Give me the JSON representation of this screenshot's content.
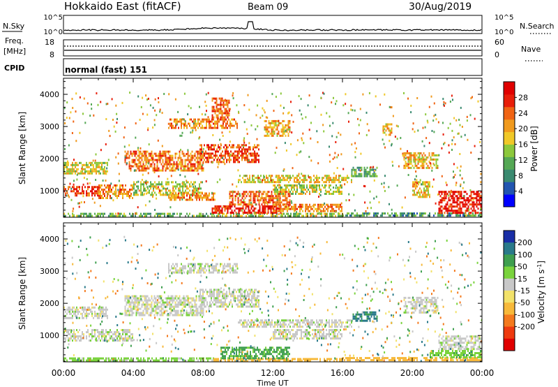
{
  "header": {
    "station": "Hokkaido East (fitACF)",
    "beam": "Beam 09",
    "date": "30/Aug/2019"
  },
  "strips": {
    "nsky_label": "N.Sky",
    "nsky_top": "10^5",
    "nsky_bottom": "10^0",
    "nsearch_label": "N.Search",
    "nsearch_top": "10^5",
    "nsearch_bottom": "10^0",
    "freq_label": "Freq.",
    "freq_unit": "[MHz]",
    "freq_top": "18",
    "freq_bottom": "8",
    "nave_label": "Nave",
    "nave_top": "60",
    "nave_bottom": "0",
    "cpid_label": "CPID",
    "cpid_value": "normal (fast) 151"
  },
  "colors": {
    "power_scale": [
      "#0000ff",
      "#2255b0",
      "#3a8a70",
      "#55a855",
      "#8cc83c",
      "#f0c828",
      "#f09a1e",
      "#f06414",
      "#e81e0a",
      "#e00000"
    ],
    "velocity_scale": [
      "#1a2ea6",
      "#2a7a8a",
      "#3f9f4f",
      "#7ad33d",
      "#c8c8c8",
      "#f2e26a",
      "#f7b93a",
      "#f47a1e",
      "#ee3a0f",
      "#e00000"
    ],
    "ground_scatter": "#bebebe"
  },
  "chart_data": [
    {
      "type": "heatmap",
      "title": "",
      "xlabel": "Time UT",
      "ylabel": "Slant Range [km]",
      "x_ticks": [
        "00:00",
        "04:00",
        "08:00",
        "12:00",
        "16:00",
        "20:00",
        "00:00"
      ],
      "xlim": [
        "00:00",
        "24:00"
      ],
      "y_ticks": [
        1000,
        2000,
        3000,
        4000
      ],
      "ylim": [
        180,
        4500
      ],
      "colorbar": {
        "label": "Power [dB]",
        "ticks": [
          4,
          8,
          12,
          16,
          20,
          24,
          28
        ],
        "range": [
          0,
          32
        ]
      },
      "regions": [
        {
          "t": [
            0.0,
            8.6
          ],
          "r": [
            230,
            320
          ],
          "v": 12
        },
        {
          "t": [
            8.6,
            16.0
          ],
          "r": [
            230,
            320
          ],
          "v": 14
        },
        {
          "t": [
            16.0,
            24.0
          ],
          "r": [
            230,
            330
          ],
          "v": 10
        },
        {
          "t": [
            0.0,
            2.0
          ],
          "r": [
            850,
            1150
          ],
          "v": 26
        },
        {
          "t": [
            2.0,
            4.0
          ],
          "r": [
            800,
            1200
          ],
          "v": 22
        },
        {
          "t": [
            4.0,
            8.0
          ],
          "r": [
            900,
            1300
          ],
          "v": 15
        },
        {
          "t": [
            0.0,
            2.5
          ],
          "r": [
            1550,
            1900
          ],
          "v": 17
        },
        {
          "t": [
            3.5,
            8.0
          ],
          "r": [
            1650,
            2250
          ],
          "v": 23
        },
        {
          "t": [
            7.8,
            11.2
          ],
          "r": [
            1900,
            2450
          ],
          "v": 25
        },
        {
          "t": [
            6.0,
            8.7
          ],
          "r": [
            700,
            950
          ],
          "v": 21
        },
        {
          "t": [
            8.5,
            12.5
          ],
          "r": [
            300,
            550
          ],
          "v": 28
        },
        {
          "t": [
            9.5,
            13.0
          ],
          "r": [
            600,
            1000
          ],
          "v": 24
        },
        {
          "t": [
            10.0,
            16.5
          ],
          "r": [
            1250,
            1500
          ],
          "v": 18
        },
        {
          "t": [
            12.0,
            16.0
          ],
          "r": [
            900,
            1200
          ],
          "v": 16
        },
        {
          "t": [
            12.0,
            16.0
          ],
          "r": [
            350,
            600
          ],
          "v": 22
        },
        {
          "t": [
            6.0,
            10.0
          ],
          "r": [
            2950,
            3250
          ],
          "v": 22
        },
        {
          "t": [
            8.5,
            9.5
          ],
          "r": [
            3300,
            3900
          ],
          "v": 24
        },
        {
          "t": [
            11.5,
            13.0
          ],
          "r": [
            2700,
            3200
          ],
          "v": 20
        },
        {
          "t": [
            16.5,
            18.0
          ],
          "r": [
            1450,
            1750
          ],
          "v": 11
        },
        {
          "t": [
            18.3,
            18.8
          ],
          "r": [
            2750,
            3100
          ],
          "v": 20
        },
        {
          "t": [
            19.5,
            21.5
          ],
          "r": [
            1700,
            2200
          ],
          "v": 19
        },
        {
          "t": [
            20.0,
            21.0
          ],
          "r": [
            800,
            1300
          ],
          "v": 18
        },
        {
          "t": [
            21.5,
            24.0
          ],
          "r": [
            300,
            1000
          ],
          "v": 29
        }
      ]
    },
    {
      "type": "heatmap",
      "title": "",
      "xlabel": "Time UT",
      "ylabel": "Slant Range [km]",
      "x_ticks": [
        "00:00",
        "04:00",
        "08:00",
        "12:00",
        "16:00",
        "20:00",
        "00:00"
      ],
      "xlim": [
        "00:00",
        "24:00"
      ],
      "y_ticks": [
        1000,
        2000,
        3000,
        4000
      ],
      "ylim": [
        180,
        4500
      ],
      "colorbar": {
        "label": "Velocity [m s^-1]",
        "ticks": [
          200,
          100,
          50,
          15,
          -15,
          -50,
          -100,
          -200
        ],
        "range": [
          -250,
          250
        ]
      },
      "regions": [
        {
          "t": [
            0.0,
            8.6
          ],
          "r": [
            230,
            320
          ],
          "v": 30
        },
        {
          "t": [
            8.6,
            16.0
          ],
          "r": [
            230,
            300
          ],
          "v": -80
        },
        {
          "t": [
            16.0,
            24.0
          ],
          "r": [
            230,
            330
          ],
          "v": -70
        },
        {
          "t": [
            0.0,
            4.0
          ],
          "r": [
            850,
            1200
          ],
          "v": 0
        },
        {
          "t": [
            0.0,
            2.5
          ],
          "r": [
            1550,
            1900
          ],
          "v": 0
        },
        {
          "t": [
            3.5,
            8.0
          ],
          "r": [
            1650,
            2250
          ],
          "v": 0
        },
        {
          "t": [
            7.8,
            11.2
          ],
          "r": [
            1900,
            2450
          ],
          "v": 0
        },
        {
          "t": [
            9.0,
            13.0
          ],
          "r": [
            300,
            650
          ],
          "v": 60
        },
        {
          "t": [
            10.0,
            16.5
          ],
          "r": [
            1250,
            1500
          ],
          "v": 0
        },
        {
          "t": [
            12.0,
            16.0
          ],
          "r": [
            900,
            1200
          ],
          "v": 0
        },
        {
          "t": [
            6.0,
            10.0
          ],
          "r": [
            2950,
            3250
          ],
          "v": 0
        },
        {
          "t": [
            16.5,
            18.0
          ],
          "r": [
            1450,
            1750
          ],
          "v": 110
        },
        {
          "t": [
            19.5,
            21.5
          ],
          "r": [
            1700,
            2200
          ],
          "v": 0
        },
        {
          "t": [
            21.5,
            24.0
          ],
          "r": [
            600,
            1000
          ],
          "v": 0
        },
        {
          "t": [
            21.0,
            24.0
          ],
          "r": [
            300,
            550
          ],
          "v": 40
        }
      ]
    }
  ]
}
